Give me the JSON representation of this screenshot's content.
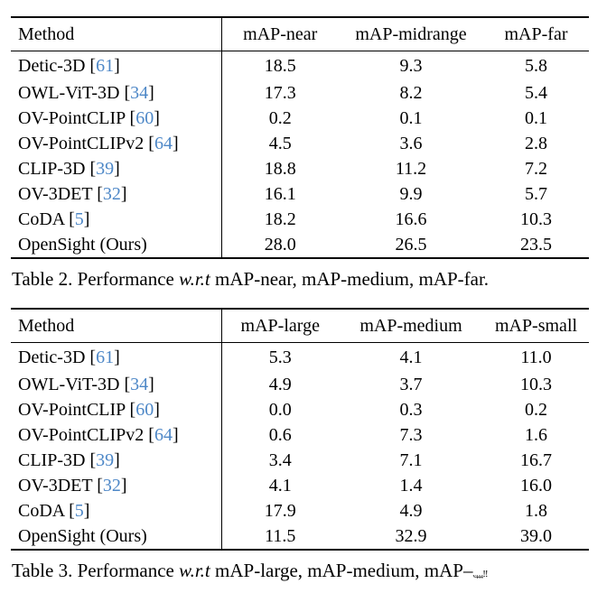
{
  "page": {
    "background": "#ffffff",
    "text_color": "#000000",
    "citation_color": "#4d87c7"
  },
  "tables": [
    {
      "name": "Table 2",
      "columns": [
        "Method",
        "mAP-near",
        "mAP-midrange",
        "mAP-far"
      ],
      "rows": [
        {
          "method": "Detic-3D",
          "cite": "61",
          "values": [
            "18.5",
            "9.3",
            "5.8"
          ]
        },
        {
          "method": "OWL-ViT-3D",
          "cite": "34",
          "values": [
            "17.3",
            "8.2",
            "5.4"
          ]
        },
        {
          "method": "OV-PointCLIP",
          "cite": "60",
          "values": [
            "0.2",
            "0.1",
            "0.1"
          ]
        },
        {
          "method": "OV-PointCLIPv2",
          "cite": "64",
          "values": [
            "4.5",
            "3.6",
            "2.8"
          ]
        },
        {
          "method": "CLIP-3D",
          "cite": "39",
          "values": [
            "18.8",
            "11.2",
            "7.2"
          ]
        },
        {
          "method": "OV-3DET",
          "cite": "32",
          "values": [
            "16.1",
            "9.9",
            "5.7"
          ]
        },
        {
          "method": "CoDA",
          "cite": "5",
          "values": [
            "18.2",
            "16.6",
            "10.3"
          ]
        },
        {
          "method": "OpenSight (Ours)",
          "cite": null,
          "values": [
            "28.0",
            "26.5",
            "23.5"
          ]
        }
      ],
      "caption": {
        "prefix": "Table 2. Performance ",
        "italic": "w.r.t",
        "suffix": " mAP-near, mAP-medium, mAP-far.",
        "garbled": ""
      }
    },
    {
      "name": "Table 3",
      "columns": [
        "Method",
        "mAP-large",
        "mAP-medium",
        "mAP-small"
      ],
      "rows": [
        {
          "method": "Detic-3D",
          "cite": "61",
          "values": [
            "5.3",
            "4.1",
            "11.0"
          ]
        },
        {
          "method": "OWL-ViT-3D",
          "cite": "34",
          "values": [
            "4.9",
            "3.7",
            "10.3"
          ]
        },
        {
          "method": "OV-PointCLIP",
          "cite": "60",
          "values": [
            "0.0",
            "0.3",
            "0.2"
          ]
        },
        {
          "method": "OV-PointCLIPv2",
          "cite": "64",
          "values": [
            "0.6",
            "7.3",
            "1.6"
          ]
        },
        {
          "method": "CLIP-3D",
          "cite": "39",
          "values": [
            "3.4",
            "7.1",
            "16.7"
          ]
        },
        {
          "method": "OV-3DET",
          "cite": "32",
          "values": [
            "4.1",
            "1.4",
            "16.0"
          ]
        },
        {
          "method": "CoDA",
          "cite": "5",
          "values": [
            "17.9",
            "4.9",
            "1.8"
          ]
        },
        {
          "method": "OpenSight (Ours)",
          "cite": null,
          "values": [
            "11.5",
            "32.9",
            "39.0"
          ]
        }
      ],
      "caption": {
        "prefix": "Table 3. Performance ",
        "italic": "w.r.t",
        "suffix": " mAP-large, mAP-medium, mAP–",
        "garbled": "ᵥ₄₄₄‼"
      }
    }
  ]
}
